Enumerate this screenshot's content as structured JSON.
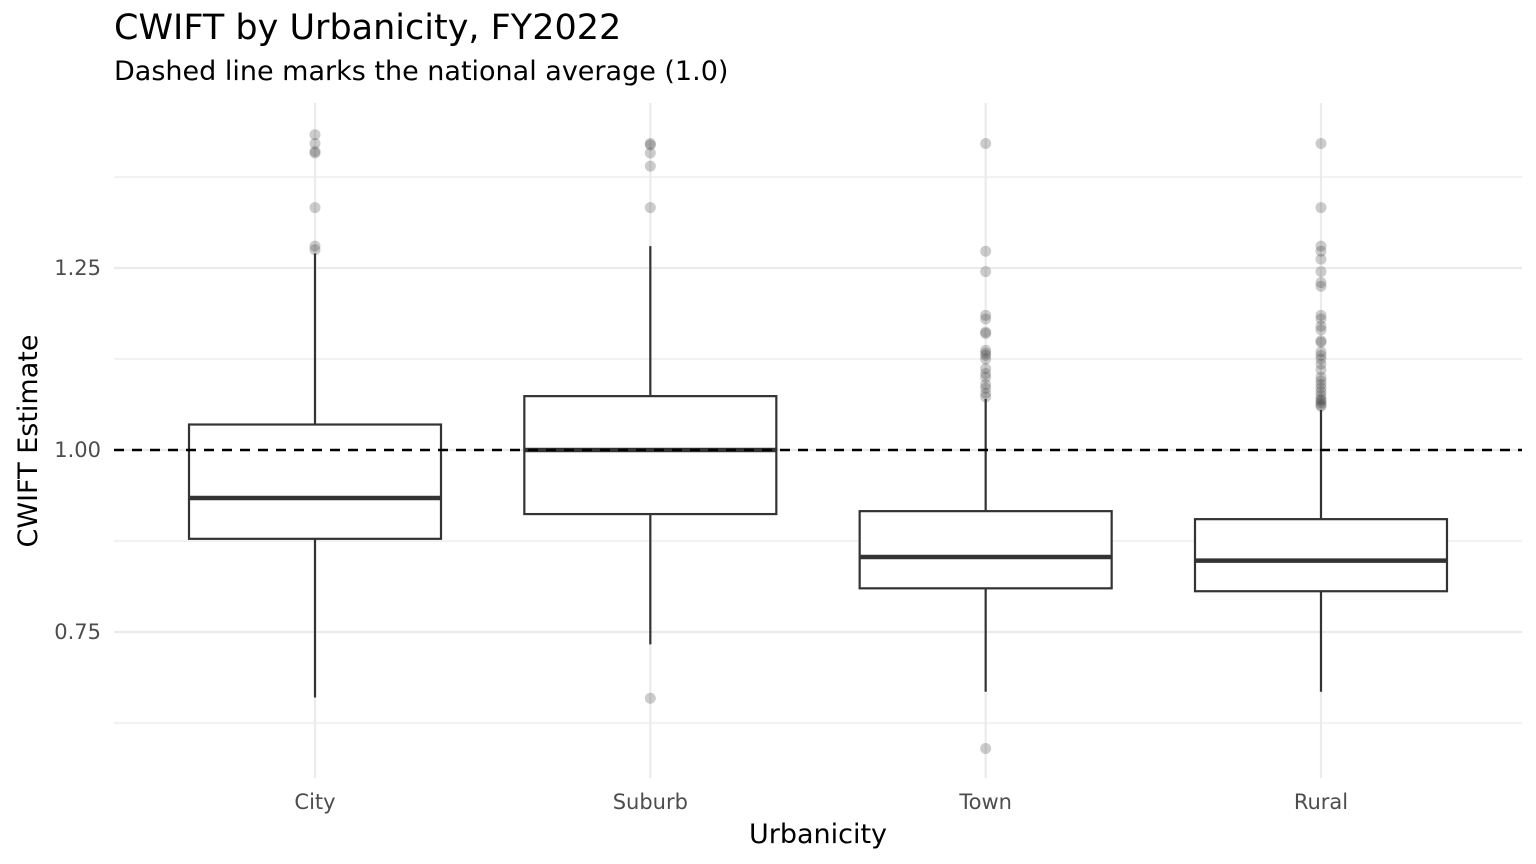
{
  "chart_data": {
    "type": "boxplot",
    "title": "CWIFT by Urbanicity, FY2022",
    "subtitle": "Dashed line marks the national average (1.0)",
    "xlabel": "Urbanicity",
    "ylabel": "CWIFT Estimate",
    "ylim": [
      0.565,
      1.455
    ],
    "y_ticks": [
      0.75,
      1.0,
      1.25
    ],
    "y_tick_labels": [
      "0.75",
      "1.00",
      "1.25"
    ],
    "reference_line": {
      "value": 1.0,
      "style": "dashed"
    },
    "grid": true,
    "categories": [
      "City",
      "Suburb",
      "Town",
      "Rural"
    ],
    "boxes": [
      {
        "category": "City",
        "lower_whisker": 0.66,
        "q1": 0.878,
        "median": 0.934,
        "q3": 1.035,
        "upper_whisker": 1.27,
        "outliers": [
          1.433,
          1.421,
          1.41,
          1.408,
          1.333,
          1.28,
          1.275
        ]
      },
      {
        "category": "Suburb",
        "lower_whisker": 0.733,
        "q1": 0.912,
        "median": 1.0,
        "q3": 1.074,
        "upper_whisker": 1.28,
        "outliers": [
          1.421,
          1.419,
          1.408,
          1.39,
          1.333,
          0.659
        ]
      },
      {
        "category": "Town",
        "lower_whisker": 0.668,
        "q1": 0.81,
        "median": 0.853,
        "q3": 0.916,
        "upper_whisker": 1.07,
        "outliers": [
          1.421,
          1.273,
          1.245,
          1.185,
          1.18,
          1.162,
          1.16,
          1.137,
          1.133,
          1.13,
          1.125,
          1.112,
          1.105,
          1.1,
          1.09,
          1.085,
          1.078,
          1.073,
          0.59
        ]
      },
      {
        "category": "Rural",
        "lower_whisker": 0.668,
        "q1": 0.806,
        "median": 0.848,
        "q3": 0.905,
        "upper_whisker": 1.055,
        "outliers": [
          1.421,
          1.333,
          1.28,
          1.273,
          1.262,
          1.245,
          1.23,
          1.225,
          1.185,
          1.18,
          1.17,
          1.165,
          1.15,
          1.148,
          1.135,
          1.13,
          1.125,
          1.118,
          1.11,
          1.1,
          1.095,
          1.09,
          1.085,
          1.08,
          1.075,
          1.07,
          1.068,
          1.065,
          1.062,
          1.06
        ]
      }
    ]
  }
}
